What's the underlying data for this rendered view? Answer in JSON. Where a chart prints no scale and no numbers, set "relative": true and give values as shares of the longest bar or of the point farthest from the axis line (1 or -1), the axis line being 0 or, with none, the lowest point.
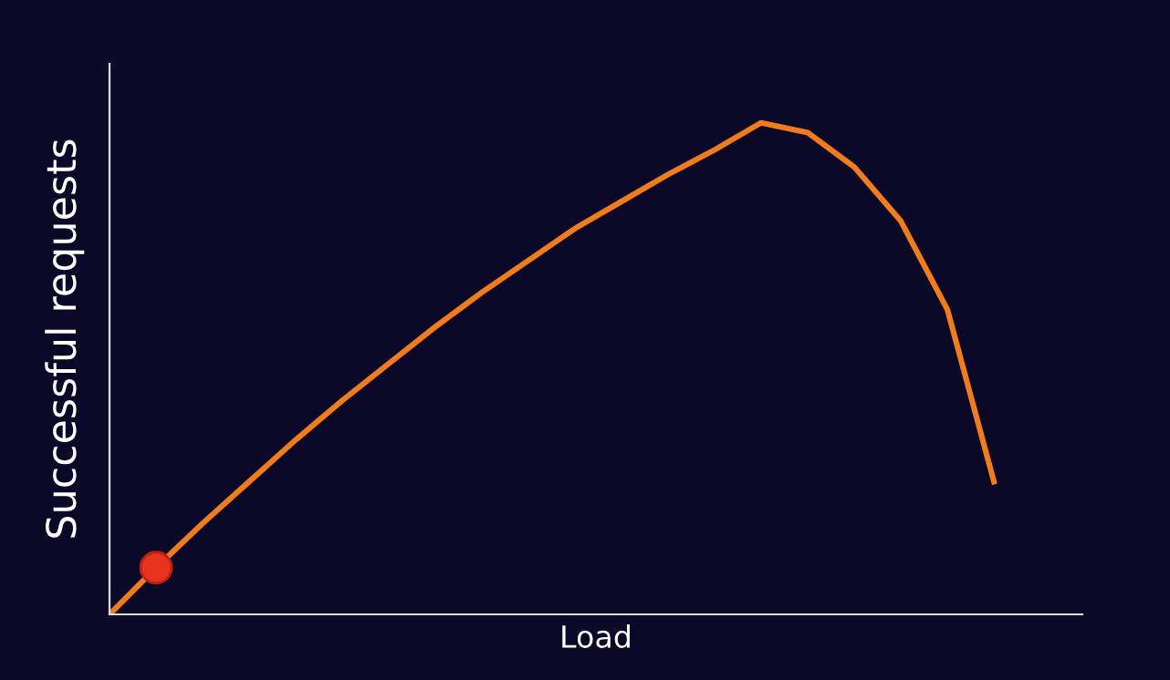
{
  "chart_data": {
    "type": "line",
    "relative": true,
    "xlabel": "Load",
    "ylabel": "Successful requests",
    "tick_labels": false,
    "categories": [
      null,
      null,
      null,
      null,
      null,
      null,
      null,
      null,
      null,
      null,
      null,
      null,
      null,
      null,
      null,
      null,
      null,
      null,
      null,
      null
    ],
    "series": [
      {
        "color": "#f07c1e",
        "values": [
          0,
          0.095,
          0.185,
          0.27,
          0.355,
          0.435,
          0.51,
          0.585,
          0.655,
          0.72,
          0.785,
          0.84,
          0.895,
          0.945,
          1.0,
          0.98,
          0.91,
          0.8,
          0.62,
          0.27
        ]
      }
    ]
  }
}
